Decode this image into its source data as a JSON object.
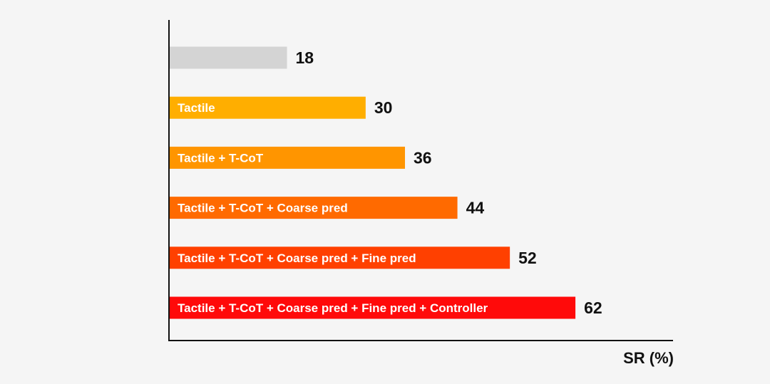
{
  "chart_data": {
    "type": "bar",
    "orientation": "horizontal",
    "categories": [
      "",
      "Tactile",
      "Tactile + T-CoT",
      "Tactile + T-CoT + Coarse pred",
      "Tactile + T-CoT + Coarse pred + Fine pred",
      "Tactile + T-CoT + Coarse pred + Fine pred + Controller"
    ],
    "values": [
      18,
      30,
      36,
      44,
      52,
      62
    ],
    "colors": [
      "#d4d4d4",
      "#ffae00",
      "#ff9500",
      "#ff6a00",
      "#ff4000",
      "#ff0a0a"
    ],
    "xlabel": "SR (%)",
    "ylabel": "",
    "title": "",
    "xlim": [
      0,
      77
    ],
    "grid": false,
    "legend": "none"
  }
}
